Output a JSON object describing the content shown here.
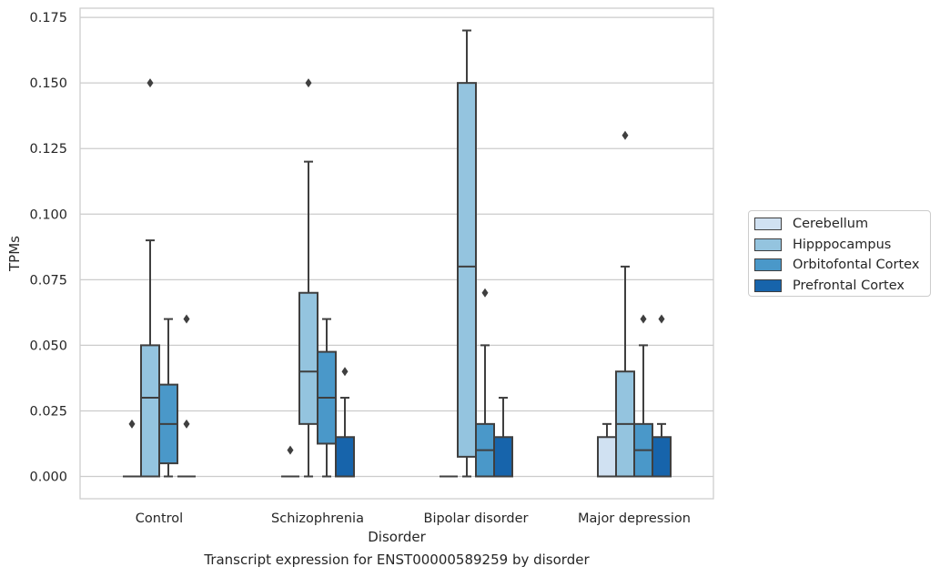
{
  "chart_data": {
    "type": "boxplot",
    "title": "Transcript expression for ENST00000589259 by disorder",
    "xlabel": "Disorder",
    "ylabel": "TPMs",
    "ylim": [
      -0.0085,
      0.1785
    ],
    "yticks": [
      0.0,
      0.025,
      0.05,
      0.075,
      0.1,
      0.125,
      0.15,
      0.175
    ],
    "ytick_labels": [
      "0.000",
      "0.025",
      "0.050",
      "0.075",
      "0.100",
      "0.125",
      "0.150",
      "0.175"
    ],
    "grid": true,
    "legend_position": "right",
    "categories": [
      "Control",
      "Schizophrenia",
      "Bipolar disorder",
      "Major depression"
    ],
    "series": [
      {
        "name": "Cerebellum",
        "color": "#d0e1f2",
        "boxes": [
          {
            "q1": 0,
            "median": 0,
            "q3": 0,
            "whislo": 0,
            "whishi": 0,
            "fliers": [
              0.02
            ]
          },
          {
            "q1": 0,
            "median": 0,
            "q3": 0,
            "whislo": 0,
            "whishi": 0,
            "fliers": [
              0.01
            ]
          },
          {
            "q1": 0,
            "median": 0,
            "q3": 0,
            "whislo": 0,
            "whishi": 0,
            "fliers": []
          },
          {
            "q1": 0,
            "median": 0,
            "q3": 0.015,
            "whislo": 0,
            "whishi": 0.02,
            "fliers": []
          }
        ]
      },
      {
        "name": "Hipppocampus",
        "color": "#94c4df",
        "boxes": [
          {
            "q1": 0,
            "median": 0.03,
            "q3": 0.05,
            "whislo": 0,
            "whishi": 0.09,
            "fliers": [
              0.15
            ]
          },
          {
            "q1": 0.02,
            "median": 0.04,
            "q3": 0.07,
            "whislo": 0,
            "whishi": 0.12,
            "fliers": [
              0.15
            ]
          },
          {
            "q1": 0.0075,
            "median": 0.08,
            "q3": 0.15,
            "whislo": 0,
            "whishi": 0.17,
            "fliers": []
          },
          {
            "q1": 0,
            "median": 0.02,
            "q3": 0.04,
            "whislo": 0,
            "whishi": 0.08,
            "fliers": [
              0.13
            ]
          }
        ]
      },
      {
        "name": "Orbitofontal Cortex",
        "color": "#4a98c9",
        "boxes": [
          {
            "q1": 0.005,
            "median": 0.02,
            "q3": 0.035,
            "whislo": 0,
            "whishi": 0.06,
            "fliers": []
          },
          {
            "q1": 0.0125,
            "median": 0.03,
            "q3": 0.0475,
            "whislo": 0,
            "whishi": 0.06,
            "fliers": []
          },
          {
            "q1": 0,
            "median": 0.01,
            "q3": 0.02,
            "whislo": 0,
            "whishi": 0.05,
            "fliers": [
              0.07
            ]
          },
          {
            "q1": 0,
            "median": 0.01,
            "q3": 0.02,
            "whislo": 0,
            "whishi": 0.05,
            "fliers": [
              0.06
            ]
          }
        ]
      },
      {
        "name": "Prefrontal Cortex",
        "color": "#1764ab",
        "boxes": [
          {
            "q1": 0,
            "median": 0,
            "q3": 0,
            "whislo": 0,
            "whishi": 0,
            "fliers": [
              0.02,
              0.06
            ]
          },
          {
            "q1": 0,
            "median": 0,
            "q3": 0.015,
            "whislo": 0,
            "whishi": 0.03,
            "fliers": [
              0.04
            ]
          },
          {
            "q1": 0,
            "median": 0,
            "q3": 0.015,
            "whislo": 0,
            "whishi": 0.03,
            "fliers": []
          },
          {
            "q1": 0,
            "median": 0,
            "q3": 0.015,
            "whislo": 0,
            "whishi": 0.02,
            "fliers": [
              0.06
            ]
          }
        ]
      }
    ]
  }
}
